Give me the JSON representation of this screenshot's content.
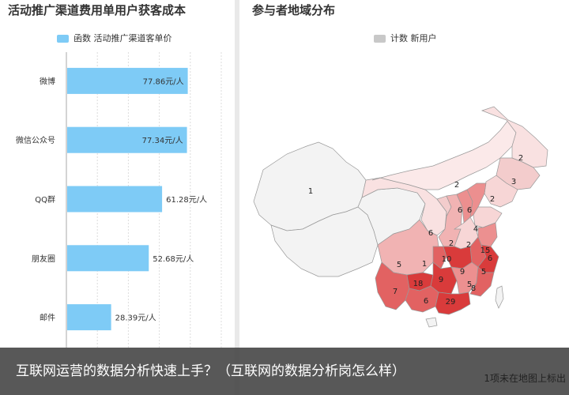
{
  "chart_data": [
    {
      "type": "bar",
      "orientation": "horizontal",
      "title": "活动推广渠道费用单用户获客成本",
      "legend_position": "top",
      "grid": true,
      "categories": [
        "微博",
        "微信公众号",
        "QQ群",
        "朋友圈",
        "邮件"
      ],
      "series": [
        {
          "name": "函数 活动推广渠道客单价",
          "values": [
            77.86,
            77.34,
            61.28,
            52.68,
            28.39
          ],
          "labels": [
            "77.86元/人",
            "77.34元/人",
            "61.28元/人",
            "52.68元/人",
            "28.39元/人"
          ],
          "color": "#7ecbf6"
        }
      ],
      "xlim": [
        0,
        100
      ]
    },
    {
      "type": "map",
      "title": "参与者地域分布",
      "legend_position": "top",
      "legend": "计数 新用户",
      "region_values": [
        1,
        2,
        2,
        3,
        2,
        6,
        6,
        2,
        4,
        6,
        2,
        5,
        1,
        10,
        15,
        6,
        9,
        5,
        7,
        18,
        9,
        5,
        6,
        29,
        8
      ],
      "note": "1项未在地图上标出"
    }
  ],
  "caption": "互联网运营的数据分析快速上手？（互联网的数据分析岗怎么样）",
  "colors": {
    "bar": "#7ecbf6",
    "map_low": "#f9e1e1",
    "map_mid": "#ec9090",
    "map_high": "#d93b3b",
    "map_zero": "#f2f2f2",
    "legend_gray": "#c8c8c8"
  }
}
